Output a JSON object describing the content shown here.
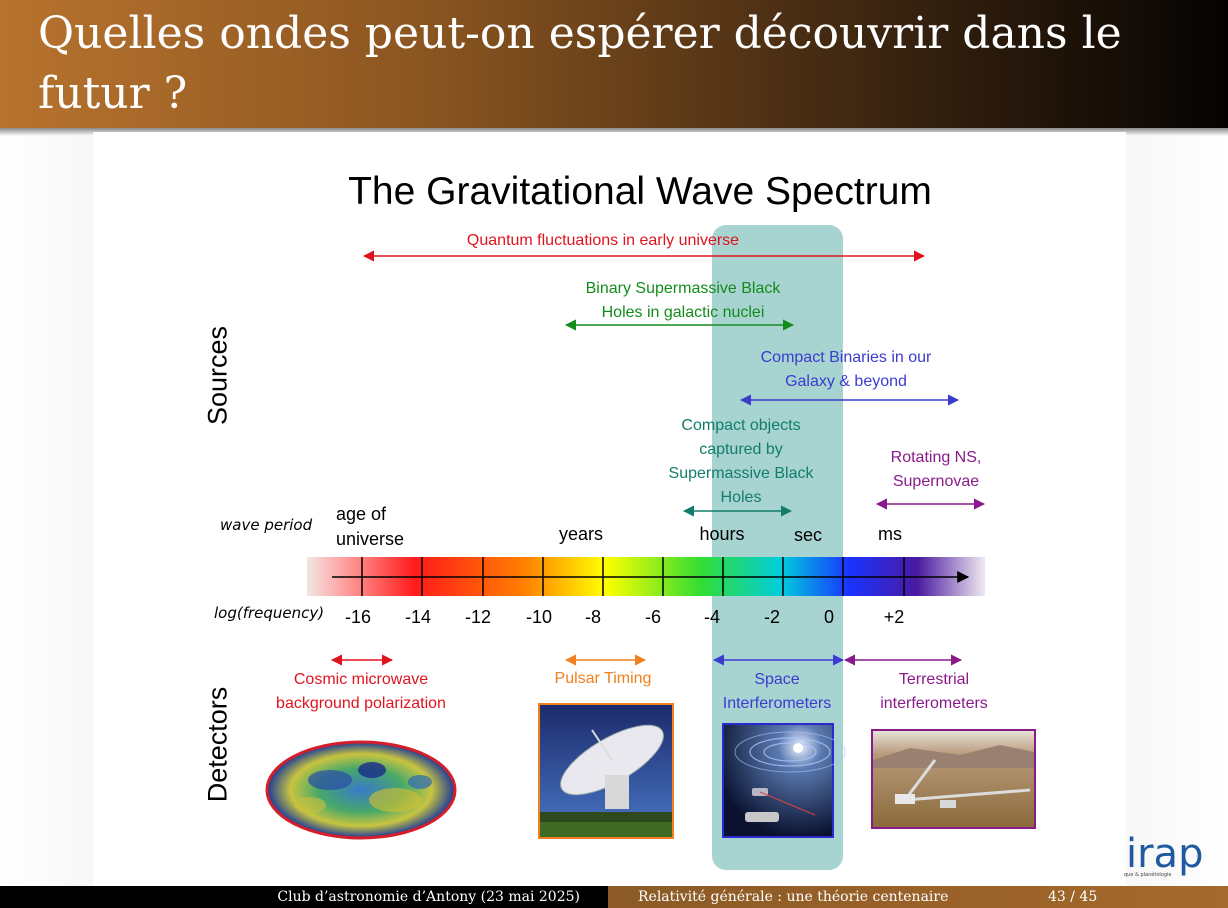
{
  "slide": {
    "title": "Quelles ondes peut-on espérer découvrir dans le futur ?"
  },
  "figure": {
    "title": "The Gravitational Wave Spectrum",
    "row_labels": {
      "sources": "Sources",
      "detectors": "Detectors"
    },
    "wave_period_label": "wave period",
    "log_frequency_label": "log(frequency)",
    "period_labels": [
      "age of universe",
      "years",
      "hours",
      "sec",
      "ms"
    ],
    "axis_ticks": [
      "-16",
      "-14",
      "-12",
      "-10",
      "-8",
      "-6",
      "-4",
      "-2",
      "0",
      "+2"
    ],
    "sources": [
      {
        "label": "Quantum fluctuations in early universe",
        "color": "#e0141e"
      },
      {
        "label": "Binary Supermassive Black Holes in galactic nuclei",
        "color": "#138c1c"
      },
      {
        "label": "Compact Binaries in our Galaxy & beyond",
        "color": "#3b3bd0"
      },
      {
        "label": "Compact objects captured by Supermassive Black Holes",
        "color": "#127d6c"
      },
      {
        "label": "Rotating NS, Supernovae",
        "color": "#8a1a8a"
      }
    ],
    "detectors": [
      {
        "label": "Cosmic microwave background polarization",
        "color": "#e0141e",
        "image": "cmb-map-icon"
      },
      {
        "label": "Pulsar Timing",
        "color": "#f08020",
        "image": "radio-telescope-icon"
      },
      {
        "label": "Space Interferometers",
        "color": "#3b3bd0",
        "image": "space-interferometer-icon"
      },
      {
        "label": "Terrestrial interferometers",
        "color": "#8a1a8a",
        "image": "ligo-site-icon"
      }
    ]
  },
  "footer": {
    "left": "Club d’astronomie d’Antony (23 mai 2025)",
    "center": "Relativité générale : une théorie centenaire",
    "page": "43 / 45"
  },
  "logo": {
    "text": "irap",
    "subtext": "que & planétologie"
  }
}
